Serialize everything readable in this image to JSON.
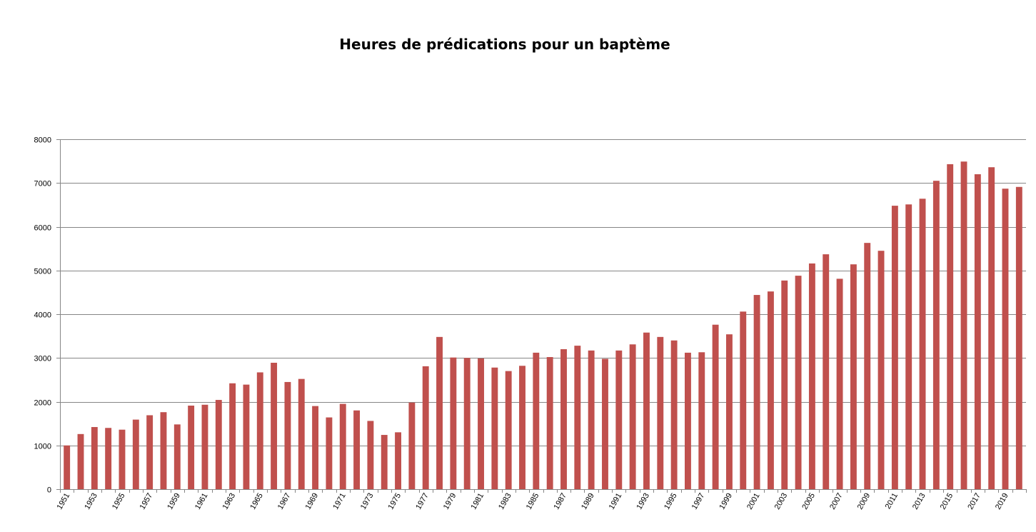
{
  "chart_data": {
    "type": "bar",
    "title": "Heures de prédications pour un baptème",
    "xlabel": "",
    "ylabel": "",
    "ylim": [
      0,
      8000
    ],
    "yticks": [
      0,
      1000,
      2000,
      3000,
      4000,
      5000,
      6000,
      7000,
      8000
    ],
    "grid": true,
    "legend": "none",
    "bar_color": "#C0504D",
    "categories": [
      1951,
      1952,
      1953,
      1954,
      1955,
      1956,
      1957,
      1958,
      1959,
      1960,
      1961,
      1962,
      1963,
      1964,
      1965,
      1966,
      1967,
      1968,
      1969,
      1970,
      1971,
      1972,
      1973,
      1974,
      1975,
      1976,
      1977,
      1978,
      1979,
      1980,
      1981,
      1982,
      1983,
      1984,
      1985,
      1986,
      1987,
      1988,
      1989,
      1990,
      1991,
      1992,
      1993,
      1994,
      1995,
      1996,
      1997,
      1998,
      1999,
      2000,
      2001,
      2002,
      2003,
      2004,
      2005,
      2006,
      2007,
      2008,
      2009,
      2010,
      2011,
      2012,
      2013,
      2014,
      2015,
      2016,
      2017,
      2018,
      2019,
      2020
    ],
    "tick_labels": [
      "1951",
      "1953",
      "1955",
      "1957",
      "1959",
      "1961",
      "1963",
      "1965",
      "1967",
      "1969",
      "1971",
      "1973",
      "1975",
      "1977",
      "1979",
      "1981",
      "1983",
      "1985",
      "1987",
      "1989",
      "1991",
      "1993",
      "1995",
      "1997",
      "1999",
      "2001",
      "2003",
      "2005",
      "2007",
      "2009",
      "2011",
      "2013",
      "2015",
      "2017",
      "2019"
    ],
    "values": [
      1000,
      1260,
      1420,
      1400,
      1360,
      1590,
      1690,
      1760,
      1480,
      1910,
      1930,
      2040,
      2420,
      2390,
      2670,
      2890,
      2450,
      2520,
      1900,
      1640,
      1950,
      1800,
      1560,
      1240,
      1300,
      1980,
      2810,
      3480,
      3010,
      3000,
      2990,
      2780,
      2700,
      2820,
      3120,
      3020,
      3200,
      3280,
      3170,
      2980,
      3170,
      3310,
      3580,
      3480,
      3400,
      3120,
      3130,
      3760,
      3540,
      4060,
      4440,
      4520,
      4770,
      4880,
      5160,
      5370,
      4810,
      5140,
      5630,
      5450,
      6480,
      6510,
      6640,
      7050,
      7430,
      7490,
      7200,
      7360,
      6870,
      6910
    ]
  }
}
